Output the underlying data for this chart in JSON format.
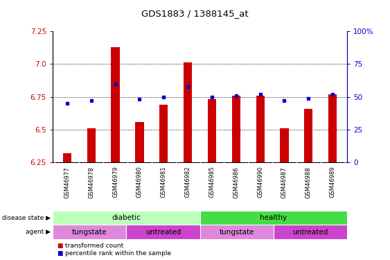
{
  "title": "GDS1883 / 1388145_at",
  "samples": [
    "GSM46977",
    "GSM46978",
    "GSM46979",
    "GSM46980",
    "GSM46981",
    "GSM46982",
    "GSM46985",
    "GSM46986",
    "GSM46990",
    "GSM46987",
    "GSM46988",
    "GSM46989"
  ],
  "bar_values": [
    6.32,
    6.51,
    7.13,
    6.56,
    6.69,
    7.01,
    6.73,
    6.76,
    6.76,
    6.51,
    6.66,
    6.77
  ],
  "dot_values": [
    6.7,
    6.72,
    6.85,
    6.73,
    6.75,
    6.83,
    6.75,
    6.76,
    6.77,
    6.72,
    6.74,
    6.77
  ],
  "ylim_left": [
    6.25,
    7.25
  ],
  "ylim_right": [
    0,
    100
  ],
  "yticks_left": [
    6.25,
    6.5,
    6.75,
    7.0,
    7.25
  ],
  "yticks_right": [
    0,
    25,
    50,
    75,
    100
  ],
  "bar_color": "#cc0000",
  "dot_color": "#0000cc",
  "bar_bottom": 6.25,
  "bar_width": 0.35,
  "disease_state_row": [
    {
      "label": "diabetic",
      "start": 0,
      "end": 6,
      "color": "#bbffbb"
    },
    {
      "label": "healthy",
      "start": 6,
      "end": 12,
      "color": "#44dd44"
    }
  ],
  "agent_row": [
    {
      "label": "tungstate",
      "start": 0,
      "end": 3,
      "color": "#dd88dd"
    },
    {
      "label": "untreated",
      "start": 3,
      "end": 6,
      "color": "#cc44cc"
    },
    {
      "label": "tungstate",
      "start": 6,
      "end": 9,
      "color": "#dd88dd"
    },
    {
      "label": "untreated",
      "start": 9,
      "end": 12,
      "color": "#cc44cc"
    }
  ],
  "legend_items": [
    {
      "label": "transformed count",
      "color": "#cc0000"
    },
    {
      "label": "percentile rank within the sample",
      "color": "#0000cc"
    }
  ],
  "left_label_color": "#cc0000",
  "right_label_color": "#0000cc",
  "grid_lines": [
    6.5,
    6.75,
    7.0
  ],
  "sample_bg_color": "#c8c8c8",
  "sample_border_color": "#ffffff"
}
